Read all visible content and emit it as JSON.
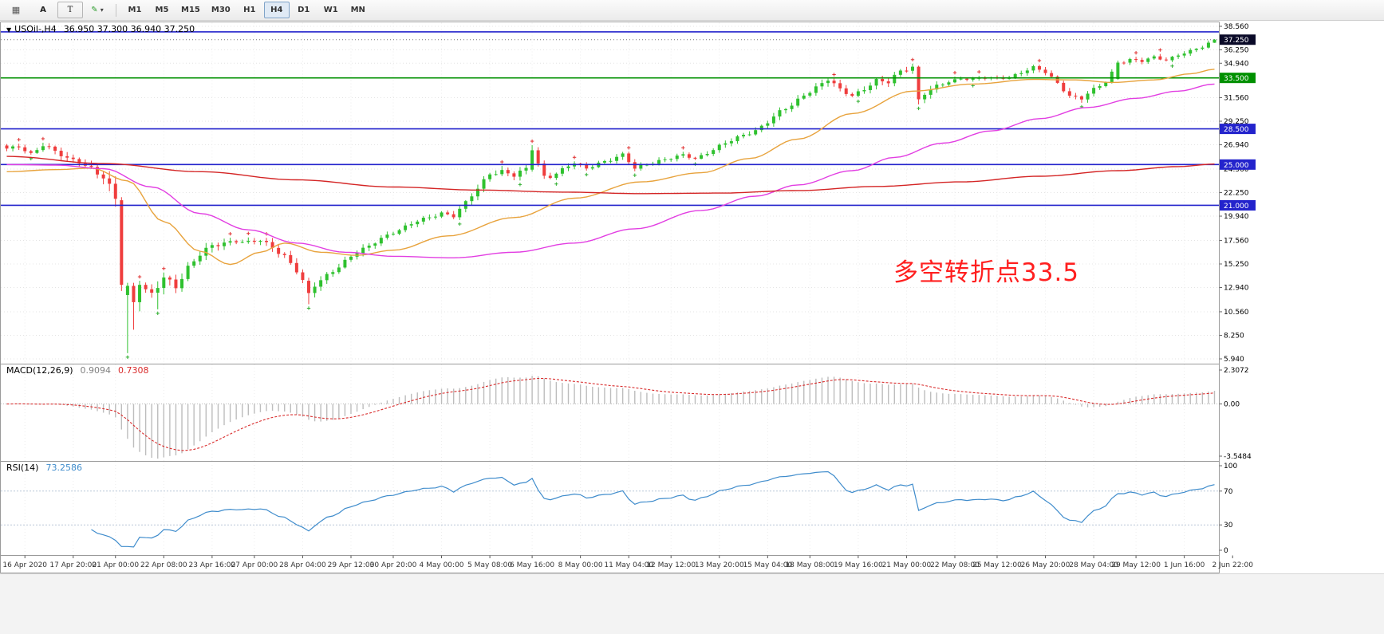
{
  "toolbar": {
    "tools": [
      {
        "name": "grid-tool",
        "glyph": "▦"
      },
      {
        "name": "text-tool",
        "glyph": "A"
      },
      {
        "name": "label-tool",
        "glyph": "T"
      },
      {
        "name": "color-tool",
        "glyph": "✎"
      }
    ],
    "caret": "▾",
    "timeframes": [
      "M1",
      "M5",
      "M15",
      "M30",
      "H1",
      "H4",
      "D1",
      "W1",
      "MN"
    ],
    "selected_timeframe": "H4"
  },
  "chart": {
    "header": {
      "marker": "▼",
      "symb§ol": "",
      "symbol": "USOil-,H4",
      "ohlc": "36.950 37.300 36.940 37.250"
    },
    "annotation": {
      "text": "多空转折点33.5",
      "color": "#ff1f1f"
    },
    "price_scale": {
      "labels": [
        {
          "text": "38.560",
          "price": 38.56
        },
        {
          "text": "36.250",
          "price": 36.25
        },
        {
          "text": "34.940",
          "price": 34.94
        },
        {
          "text": "31.560",
          "price": 31.56
        },
        {
          "text": "29.250",
          "price": 29.25
        },
        {
          "text": "26.940",
          "price": 26.94
        },
        {
          "text": "24.560",
          "price": 24.56
        },
        {
          "text": "22.250",
          "price": 22.25
        },
        {
          "text": "19.940",
          "price": 19.94
        },
        {
          "text": "17.560",
          "price": 17.56
        },
        {
          "text": "15.250",
          "price": 15.25
        },
        {
          "text": "12.940",
          "price": 12.94
        },
        {
          "text": "10.560",
          "price": 10.56
        },
        {
          "text": "8.250",
          "price": 8.25
        },
        {
          "text": "5.940",
          "price": 5.94
        }
      ],
      "hlines": [
        {
          "price": 38.02,
          "color": "#2323cc",
          "box": null
        },
        {
          "price": 33.5,
          "color": "#009000",
          "box": "33.500"
        },
        {
          "price": 28.5,
          "color": "#2323cc",
          "box": "28.500"
        },
        {
          "price": 25.0,
          "color": "#2323cc",
          "box": "25.000"
        },
        {
          "price": 21.0,
          "color": "#2323cc",
          "box": "21.000"
        }
      ],
      "current": {
        "price": 37.25,
        "box": "37.250",
        "box_color": "#0a0a28"
      }
    }
  },
  "macd": {
    "title": "MACD(12,26,9)",
    "value_main": "0.9094",
    "value_signal": "0.7308",
    "params": [
      12,
      26,
      9
    ],
    "colors": {
      "hist": "#bdbdbd",
      "hist_text": "#808080",
      "signal": "#d92c2c"
    },
    "scale": {
      "max": 2.3072,
      "min": -3.5484,
      "labels": [
        {
          "text": "2.3072",
          "value": 2.3072
        },
        {
          "text": "0.00",
          "value": 0
        },
        {
          "text": "-3.5484",
          "value": -3.5484
        }
      ]
    }
  },
  "rsi": {
    "title": "RSI(14)",
    "value": "73.2586",
    "period": 14,
    "color": "#3f8ccc",
    "levels": [
      70,
      30
    ],
    "scale": {
      "labels": [
        {
          "text": "100",
          "value": 100
        },
        {
          "text": "70",
          "value": 70
        },
        {
          "text": "30",
          "value": 30
        },
        {
          "text": "0",
          "value": 0
        }
      ]
    }
  },
  "time_axis": {
    "labels": [
      {
        "bar": 3,
        "text": "16 Apr 2020"
      },
      {
        "bar": 11,
        "text": "17 Apr 20:00"
      },
      {
        "bar": 18,
        "text": "21 Apr 00:00"
      },
      {
        "bar": 26,
        "text": "22 Apr 08:00"
      },
      {
        "bar": 34,
        "text": "23 Apr 16:00"
      },
      {
        "bar": 41,
        "text": "27 Apr 00:00"
      },
      {
        "bar": 49,
        "text": "28 Apr 04:00"
      },
      {
        "bar": 57,
        "text": "29 Apr 12:00"
      },
      {
        "bar": 64,
        "text": "30 Apr 20:00"
      },
      {
        "bar": 72,
        "text": "4 May 00:00"
      },
      {
        "bar": 80,
        "text": "5 May 08:00"
      },
      {
        "bar": 87,
        "text": "6 May 16:00"
      },
      {
        "bar": 95,
        "text": "8 May 00:00"
      },
      {
        "bar": 103,
        "text": "11 May 04:00"
      },
      {
        "bar": 110,
        "text": "12 May 12:00"
      },
      {
        "bar": 118,
        "text": "13 May 20:00"
      },
      {
        "bar": 126,
        "text": "15 May 04:00"
      },
      {
        "bar": 133,
        "text": "18 May 08:00"
      },
      {
        "bar": 141,
        "text": "19 May 16:00"
      },
      {
        "bar": 149,
        "text": "21 May 00:00"
      },
      {
        "bar": 157,
        "text": "22 May 08:00"
      },
      {
        "bar": 164,
        "text": "25 May 12:00"
      },
      {
        "bar": 172,
        "text": "26 May 20:00"
      },
      {
        "bar": 180,
        "text": "28 May 04:00"
      },
      {
        "bar": 187,
        "text": "29 May 12:00"
      },
      {
        "bar": 195,
        "text": "1 Jun 16:00"
      },
      {
        "bar": 203,
        "text": "2 Jun 22:00"
      }
    ]
  },
  "chart_data": {
    "type": "candlestick",
    "symbol": "USOil-",
    "timeframe": "H4",
    "bars": 201,
    "price_range": [
      5.94,
      38.56
    ],
    "current_bar": {
      "open": 36.95,
      "high": 37.3,
      "low": 36.94,
      "close": 37.25
    },
    "up_color": "#2fc12f",
    "down_color": "#ef3d3d",
    "close_anchors": [
      [
        0,
        26.5
      ],
      [
        2,
        26.8
      ],
      [
        4,
        26.1
      ],
      [
        6,
        26.9
      ],
      [
        8,
        26.2
      ],
      [
        10,
        25.6
      ],
      [
        12,
        25.4
      ],
      [
        14,
        24.6
      ],
      [
        16,
        23.6
      ],
      [
        18,
        21.6
      ],
      [
        19,
        17.6
      ],
      [
        20,
        12.5
      ],
      [
        21,
        11.3
      ],
      [
        22,
        13.2
      ],
      [
        24,
        12.1
      ],
      [
        26,
        13.8
      ],
      [
        28,
        13.1
      ],
      [
        30,
        15.0
      ],
      [
        32,
        16.2
      ],
      [
        34,
        16.9
      ],
      [
        36,
        17.3
      ],
      [
        38,
        17.6
      ],
      [
        40,
        17.4
      ],
      [
        42,
        17.5
      ],
      [
        44,
        16.8
      ],
      [
        46,
        16.1
      ],
      [
        48,
        14.7
      ],
      [
        50,
        12.5
      ],
      [
        52,
        13.6
      ],
      [
        54,
        14.6
      ],
      [
        56,
        15.6
      ],
      [
        58,
        16.4
      ],
      [
        60,
        16.9
      ],
      [
        62,
        17.8
      ],
      [
        64,
        18.4
      ],
      [
        66,
        18.9
      ],
      [
        68,
        19.4
      ],
      [
        70,
        19.8
      ],
      [
        72,
        20.3
      ],
      [
        74,
        20.0
      ],
      [
        76,
        21.2
      ],
      [
        78,
        22.6
      ],
      [
        80,
        24.2
      ],
      [
        82,
        24.4
      ],
      [
        84,
        23.9
      ],
      [
        86,
        24.5
      ],
      [
        88,
        25.1
      ],
      [
        90,
        23.9
      ],
      [
        92,
        24.5
      ],
      [
        94,
        25.1
      ],
      [
        96,
        24.6
      ],
      [
        98,
        25.2
      ],
      [
        100,
        25.5
      ],
      [
        102,
        25.9
      ],
      [
        104,
        24.6
      ],
      [
        106,
        25.1
      ],
      [
        108,
        25.4
      ],
      [
        110,
        25.6
      ],
      [
        112,
        25.9
      ],
      [
        114,
        25.6
      ],
      [
        116,
        26.2
      ],
      [
        118,
        26.8
      ],
      [
        120,
        27.3
      ],
      [
        122,
        27.9
      ],
      [
        124,
        28.4
      ],
      [
        126,
        29.2
      ],
      [
        128,
        30.1
      ],
      [
        130,
        30.8
      ],
      [
        132,
        31.9
      ],
      [
        134,
        32.6
      ],
      [
        136,
        33.3
      ],
      [
        138,
        32.3
      ],
      [
        140,
        31.8
      ],
      [
        142,
        32.5
      ],
      [
        144,
        33.2
      ],
      [
        146,
        33.0
      ],
      [
        148,
        34.2
      ],
      [
        150,
        34.6
      ],
      [
        152,
        32.0
      ],
      [
        154,
        32.6
      ],
      [
        156,
        33.1
      ],
      [
        158,
        33.5
      ],
      [
        160,
        33.4
      ],
      [
        162,
        33.5
      ],
      [
        164,
        33.4
      ],
      [
        166,
        33.6
      ],
      [
        168,
        34.1
      ],
      [
        170,
        34.5
      ],
      [
        172,
        34.0
      ],
      [
        174,
        33.0
      ],
      [
        176,
        31.8
      ],
      [
        178,
        31.5
      ],
      [
        180,
        32.3
      ],
      [
        182,
        33.1
      ],
      [
        184,
        35.0
      ],
      [
        186,
        35.3
      ],
      [
        188,
        35.1
      ],
      [
        190,
        35.5
      ],
      [
        192,
        35.3
      ],
      [
        194,
        35.8
      ],
      [
        196,
        36.1
      ],
      [
        198,
        36.5
      ],
      [
        200,
        37.25
      ]
    ],
    "vol_anchors": [
      [
        0,
        0.45
      ],
      [
        12,
        0.7
      ],
      [
        18,
        1.3
      ],
      [
        24,
        1.1
      ],
      [
        30,
        0.9
      ],
      [
        40,
        0.55
      ],
      [
        48,
        0.8
      ],
      [
        56,
        0.6
      ],
      [
        64,
        0.5
      ],
      [
        72,
        0.5
      ],
      [
        80,
        0.7
      ],
      [
        88,
        0.6
      ],
      [
        96,
        0.45
      ],
      [
        104,
        0.5
      ],
      [
        112,
        0.4
      ],
      [
        120,
        0.5
      ],
      [
        130,
        0.6
      ],
      [
        140,
        0.6
      ],
      [
        150,
        0.7
      ],
      [
        160,
        0.35
      ],
      [
        170,
        0.45
      ],
      [
        178,
        0.55
      ],
      [
        186,
        0.4
      ],
      [
        194,
        0.4
      ],
      [
        200,
        0.35
      ]
    ],
    "overrides": [
      {
        "i": 19,
        "o": 21.5,
        "h": 21.8,
        "l": 12.6,
        "c": 13.2
      },
      {
        "i": 20,
        "o": 12.2,
        "h": 13.4,
        "l": 6.5,
        "c": 13.1
      },
      {
        "i": 21,
        "o": 13.1,
        "h": 13.4,
        "l": 8.8,
        "c": 11.5
      },
      {
        "i": 22,
        "o": 11.5,
        "h": 13.6,
        "l": 10.6,
        "c": 13.2
      },
      {
        "i": 25,
        "l": 10.8
      },
      {
        "i": 50,
        "o": 13.6,
        "h": 13.9,
        "l": 11.3,
        "c": 12.4
      },
      {
        "i": 87,
        "o": 24.5,
        "h": 26.9,
        "l": 24.3,
        "c": 26.4
      },
      {
        "i": 88,
        "o": 26.4,
        "h": 26.7,
        "l": 24.8,
        "c": 25.1
      },
      {
        "i": 89,
        "o": 25.1,
        "h": 25.4,
        "l": 23.6,
        "c": 23.9
      },
      {
        "i": 150,
        "o": 34.2,
        "h": 34.9,
        "l": 33.9,
        "c": 34.6
      },
      {
        "i": 151,
        "o": 34.6,
        "h": 34.7,
        "l": 30.9,
        "c": 31.4
      },
      {
        "i": 184,
        "o": 33.4,
        "h": 35.2,
        "l": 33.3,
        "c": 35.0
      },
      {
        "i": 200,
        "o": 36.95,
        "h": 37.3,
        "l": 36.94,
        "c": 37.25
      }
    ],
    "ma_lines": [
      {
        "name": "fast-ma-orange",
        "color": "#e8a33d",
        "points": [
          [
            0,
            24.3
          ],
          [
            8,
            24.5
          ],
          [
            14,
            24.65
          ],
          [
            20,
            23.4
          ],
          [
            26,
            19.4
          ],
          [
            32,
            16.5
          ],
          [
            37,
            15.2
          ],
          [
            42,
            16.4
          ],
          [
            46,
            17.3
          ],
          [
            52,
            16.4
          ],
          [
            58,
            16.1
          ],
          [
            64,
            16.6
          ],
          [
            73,
            18.0
          ],
          [
            84,
            19.8
          ],
          [
            94,
            21.7
          ],
          [
            105,
            23.3
          ],
          [
            115,
            24.2
          ],
          [
            123,
            25.6
          ],
          [
            131,
            27.5
          ],
          [
            140,
            30.0
          ],
          [
            150,
            32.2
          ],
          [
            160,
            32.9
          ],
          [
            170,
            33.35
          ],
          [
            177,
            33.3
          ],
          [
            183,
            33.05
          ],
          [
            190,
            33.3
          ],
          [
            196,
            33.9
          ],
          [
            200,
            34.35
          ]
        ]
      },
      {
        "name": "mid-ma-magenta",
        "color": "#e23ee2",
        "points": [
          [
            0,
            25.0
          ],
          [
            8,
            24.95
          ],
          [
            16,
            24.6
          ],
          [
            24,
            22.8
          ],
          [
            32,
            20.2
          ],
          [
            40,
            18.6
          ],
          [
            48,
            17.3
          ],
          [
            56,
            16.4
          ],
          [
            64,
            16.0
          ],
          [
            74,
            15.85
          ],
          [
            84,
            16.4
          ],
          [
            94,
            17.3
          ],
          [
            104,
            18.7
          ],
          [
            115,
            20.5
          ],
          [
            124,
            21.9
          ],
          [
            131,
            23.0
          ],
          [
            140,
            24.4
          ],
          [
            147,
            25.7
          ],
          [
            155,
            27.1
          ],
          [
            163,
            28.3
          ],
          [
            171,
            29.5
          ],
          [
            179,
            30.6
          ],
          [
            187,
            31.5
          ],
          [
            194,
            32.2
          ],
          [
            200,
            32.9
          ]
        ]
      },
      {
        "name": "slow-ma-red",
        "color": "#d42525",
        "points": [
          [
            0,
            25.8
          ],
          [
            16,
            25.1
          ],
          [
            32,
            24.3
          ],
          [
            48,
            23.5
          ],
          [
            64,
            22.8
          ],
          [
            78,
            22.5
          ],
          [
            92,
            22.3
          ],
          [
            105,
            22.15
          ],
          [
            118,
            22.2
          ],
          [
            131,
            22.45
          ],
          [
            144,
            22.85
          ],
          [
            158,
            23.3
          ],
          [
            171,
            23.85
          ],
          [
            184,
            24.4
          ],
          [
            194,
            24.8
          ],
          [
            200,
            25.05
          ]
        ]
      }
    ]
  }
}
